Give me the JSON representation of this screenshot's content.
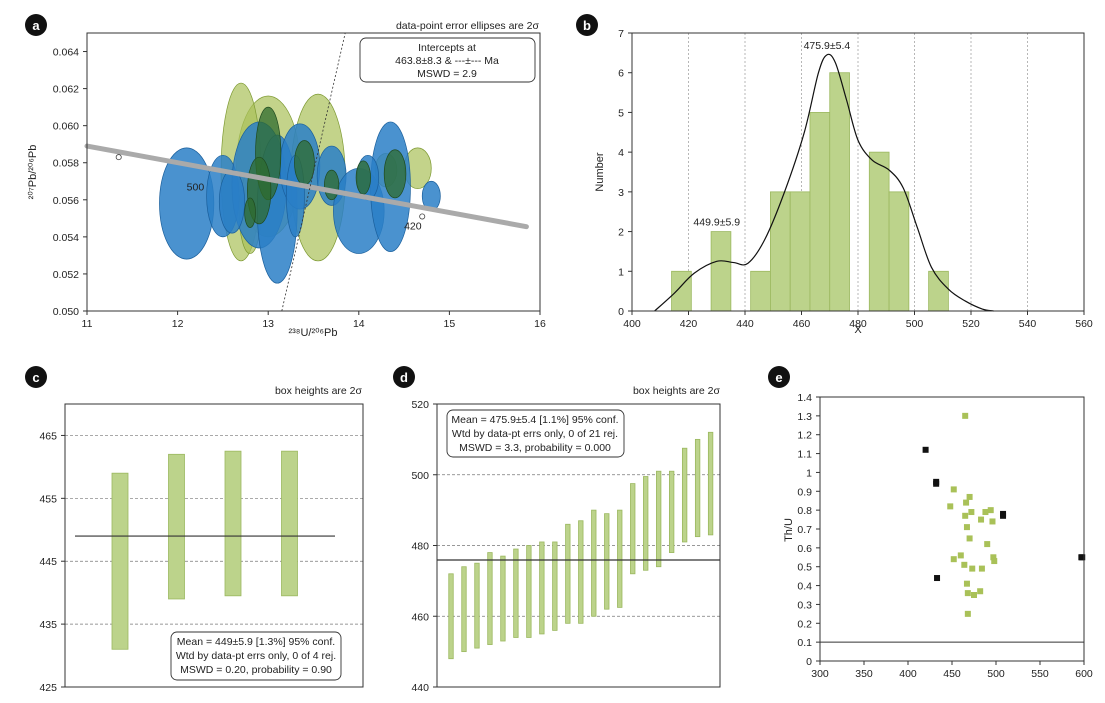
{
  "colors": {
    "blue": "#2a7fc7",
    "blue_dark": "#1a5f9c",
    "dkgreen": "#2f6b2e",
    "ltgreen": "#a9c158",
    "bar_green": "#bcd38b",
    "bar_green_edge": "#9bb85f",
    "black": "#111111",
    "gray": "#aaaaaa"
  },
  "chart_data": [
    {
      "panel": "a",
      "type": "scatter",
      "subtype": "concordia",
      "note": "data-point error ellipses are 2σ",
      "box_lines": [
        "Intercepts at",
        "463.8±8.3 & ---±--- Ma",
        "MSWD = 2.9"
      ],
      "xlabel": "²³⁸U/²⁰⁶Pb",
      "ylabel": "²⁰⁷Pb/²⁰⁶Pb",
      "xlim": [
        11,
        16
      ],
      "ylim": [
        0.05,
        0.065
      ],
      "xticks": [
        11,
        12,
        13,
        14,
        15,
        16
      ],
      "yticks": [
        0.05,
        0.052,
        0.054,
        0.056,
        0.058,
        0.06,
        0.062,
        0.064
      ],
      "ytick_labels": [
        "0.050",
        "0.052",
        "0.054",
        "0.056",
        "0.058",
        "0.060",
        "0.062",
        "0.064"
      ],
      "concordia_points": [
        {
          "x": 11.35,
          "y": 0.0583
        },
        {
          "x": 14.7,
          "y": 0.0551
        }
      ],
      "concordia_labels": [
        {
          "text": "500",
          "x": 12.1,
          "y": 0.0565
        },
        {
          "text": "420",
          "x": 14.5,
          "y": 0.0544
        }
      ],
      "ellipses": [
        {
          "x": 13.0,
          "y": 0.0578,
          "rx": 0.35,
          "ry": 0.0038,
          "c": "ltgreen"
        },
        {
          "x": 13.55,
          "y": 0.0572,
          "rx": 0.3,
          "ry": 0.0045,
          "c": "ltgreen"
        },
        {
          "x": 12.7,
          "y": 0.0575,
          "rx": 0.22,
          "ry": 0.0048,
          "c": "ltgreen"
        },
        {
          "x": 14.65,
          "y": 0.0577,
          "rx": 0.15,
          "ry": 0.0011,
          "c": "ltgreen"
        },
        {
          "x": 14.3,
          "y": 0.0576,
          "rx": 0.12,
          "ry": 0.0009,
          "c": "ltgreen"
        },
        {
          "x": 12.8,
          "y": 0.0553,
          "rx": 0.12,
          "ry": 0.0022,
          "c": "ltgreen"
        },
        {
          "x": 12.1,
          "y": 0.0558,
          "rx": 0.3,
          "ry": 0.003,
          "c": "blue"
        },
        {
          "x": 12.5,
          "y": 0.0562,
          "rx": 0.18,
          "ry": 0.0022,
          "c": "blue"
        },
        {
          "x": 12.9,
          "y": 0.0568,
          "rx": 0.3,
          "ry": 0.0034,
          "c": "blue"
        },
        {
          "x": 13.1,
          "y": 0.0555,
          "rx": 0.22,
          "ry": 0.004,
          "c": "blue"
        },
        {
          "x": 13.35,
          "y": 0.0578,
          "rx": 0.22,
          "ry": 0.0023,
          "c": "blue"
        },
        {
          "x": 13.7,
          "y": 0.0573,
          "rx": 0.16,
          "ry": 0.0016,
          "c": "blue"
        },
        {
          "x": 14.0,
          "y": 0.0554,
          "rx": 0.28,
          "ry": 0.0023,
          "c": "blue"
        },
        {
          "x": 14.35,
          "y": 0.0567,
          "rx": 0.22,
          "ry": 0.0035,
          "c": "blue"
        },
        {
          "x": 14.1,
          "y": 0.0572,
          "rx": 0.12,
          "ry": 0.0012,
          "c": "blue"
        },
        {
          "x": 14.8,
          "y": 0.0562,
          "rx": 0.1,
          "ry": 0.0008,
          "c": "blue"
        },
        {
          "x": 13.3,
          "y": 0.0562,
          "rx": 0.1,
          "ry": 0.0022,
          "c": "blue"
        },
        {
          "x": 12.6,
          "y": 0.0559,
          "rx": 0.14,
          "ry": 0.0017,
          "c": "blue"
        },
        {
          "x": 13.0,
          "y": 0.0585,
          "rx": 0.14,
          "ry": 0.0025,
          "c": "dkgreen"
        },
        {
          "x": 13.4,
          "y": 0.058,
          "rx": 0.11,
          "ry": 0.0012,
          "c": "dkgreen"
        },
        {
          "x": 12.9,
          "y": 0.0565,
          "rx": 0.13,
          "ry": 0.0018,
          "c": "dkgreen"
        },
        {
          "x": 14.4,
          "y": 0.0574,
          "rx": 0.12,
          "ry": 0.0013,
          "c": "dkgreen"
        },
        {
          "x": 14.05,
          "y": 0.0572,
          "rx": 0.08,
          "ry": 0.0009,
          "c": "dkgreen"
        },
        {
          "x": 13.7,
          "y": 0.0568,
          "rx": 0.08,
          "ry": 0.0008,
          "c": "dkgreen"
        },
        {
          "x": 12.8,
          "y": 0.0553,
          "rx": 0.06,
          "ry": 0.0008,
          "c": "dkgreen"
        }
      ]
    },
    {
      "panel": "b",
      "type": "bar",
      "subtype": "histogram_with_density",
      "xlabel": "X",
      "ylabel": "Number",
      "xlim": [
        400,
        560
      ],
      "ylim": [
        0,
        7
      ],
      "xticks": [
        400,
        420,
        440,
        460,
        480,
        500,
        520,
        540,
        560
      ],
      "yticks": [
        0,
        1,
        2,
        3,
        4,
        5,
        6,
        7
      ],
      "bins": [
        {
          "x0": 414,
          "x1": 421,
          "count": 1
        },
        {
          "x0": 428,
          "x1": 435,
          "count": 2
        },
        {
          "x0": 442,
          "x1": 449,
          "count": 1
        },
        {
          "x0": 449,
          "x1": 456,
          "count": 3
        },
        {
          "x0": 456,
          "x1": 463,
          "count": 3
        },
        {
          "x0": 463,
          "x1": 470,
          "count": 5
        },
        {
          "x0": 470,
          "x1": 477,
          "count": 6
        },
        {
          "x0": 484,
          "x1": 491,
          "count": 4
        },
        {
          "x0": 491,
          "x1": 498,
          "count": 3
        },
        {
          "x0": 505,
          "x1": 512,
          "count": 1
        }
      ],
      "density_curve": [
        [
          408,
          0.0
        ],
        [
          415,
          0.45
        ],
        [
          422,
          0.95
        ],
        [
          430,
          1.25
        ],
        [
          436,
          1.22
        ],
        [
          441,
          1.2
        ],
        [
          447,
          1.8
        ],
        [
          454,
          3.0
        ],
        [
          461,
          4.5
        ],
        [
          466,
          6.0
        ],
        [
          469,
          6.45
        ],
        [
          472,
          6.25
        ],
        [
          476,
          5.3
        ],
        [
          480,
          4.3
        ],
        [
          485,
          3.8
        ],
        [
          491,
          3.55
        ],
        [
          496,
          3.1
        ],
        [
          501,
          2.1
        ],
        [
          506,
          1.1
        ],
        [
          512,
          0.55
        ],
        [
          518,
          0.25
        ],
        [
          524,
          0.05
        ],
        [
          528,
          0.0
        ]
      ],
      "peak_labels": [
        {
          "text": "475.9±5.4",
          "x": 469,
          "y": 6.6
        },
        {
          "text": "449.9±5.9",
          "x": 430,
          "y": 2.15
        }
      ]
    },
    {
      "panel": "c",
      "type": "bar",
      "subtype": "weighted_mean",
      "note": "box heights are 2σ",
      "ylim": [
        425,
        470
      ],
      "yticks": [
        425,
        435,
        445,
        455,
        465
      ],
      "gridlines": [
        435,
        445,
        455,
        465
      ],
      "mean": 449,
      "boxes": [
        [
          431,
          459
        ],
        [
          439,
          462
        ],
        [
          439.5,
          462.5
        ],
        [
          439.5,
          462.5
        ]
      ],
      "legend_lines": [
        "Mean = 449±5.9 [1.3%] 95% conf.",
        "Wtd by data-pt errs only, 0 of 4 rej.",
        "MSWD = 0.20, probability = 0.90"
      ]
    },
    {
      "panel": "d",
      "type": "bar",
      "subtype": "weighted_mean",
      "note": "box heights are 2σ",
      "ylim": [
        440,
        520
      ],
      "yticks": [
        440,
        460,
        480,
        500,
        520
      ],
      "gridlines": [
        460,
        480,
        500
      ],
      "mean": 475.9,
      "boxes": [
        [
          448,
          472
        ],
        [
          450,
          474
        ],
        [
          451,
          475
        ],
        [
          452,
          478
        ],
        [
          453,
          477
        ],
        [
          454,
          479
        ],
        [
          454,
          480
        ],
        [
          455,
          481
        ],
        [
          456,
          481
        ],
        [
          458,
          486
        ],
        [
          458,
          487
        ],
        [
          460,
          490
        ],
        [
          462,
          489
        ],
        [
          462.5,
          490
        ],
        [
          472,
          497.5
        ],
        [
          473,
          499.5
        ],
        [
          474,
          501
        ],
        [
          478,
          501
        ],
        [
          481,
          507.5
        ],
        [
          482.5,
          510
        ],
        [
          483,
          512
        ]
      ],
      "legend_lines": [
        "Mean = 475.9±5.4 [1.1%] 95% conf.",
        "Wtd by data-pt errs only, 0 of 21 rej.",
        "MSWD = 3.3, probability = 0.000"
      ]
    },
    {
      "panel": "e",
      "type": "scatter",
      "ylabel": "Th/U",
      "xlim": [
        300,
        600
      ],
      "ylim": [
        0,
        1.4
      ],
      "xticks": [
        300,
        350,
        400,
        450,
        500,
        550,
        600
      ],
      "yticks": [
        0,
        0.1,
        0.2,
        0.3,
        0.4,
        0.5,
        0.6,
        0.7,
        0.8,
        0.9,
        1,
        1.1,
        1.2,
        1.3,
        1.4
      ],
      "hline": 0.1,
      "series": [
        {
          "name": "black",
          "color": "black",
          "points": [
            [
              420,
              1.12
            ],
            [
              432,
              0.95
            ],
            [
              432,
              0.94
            ],
            [
              433,
              0.44
            ],
            [
              508,
              0.78
            ],
            [
              508,
              0.77
            ],
            [
              597,
              0.55
            ],
            [
              598,
              0.55
            ]
          ]
        },
        {
          "name": "green",
          "color": "ltgreen",
          "points": [
            [
              465,
              1.3
            ],
            [
              452,
              0.91
            ],
            [
              470,
              0.87
            ],
            [
              466,
              0.84
            ],
            [
              448,
              0.82
            ],
            [
              472,
              0.79
            ],
            [
              488,
              0.79
            ],
            [
              494,
              0.8
            ],
            [
              465,
              0.77
            ],
            [
              483,
              0.75
            ],
            [
              496,
              0.74
            ],
            [
              467,
              0.71
            ],
            [
              470,
              0.65
            ],
            [
              490,
              0.62
            ],
            [
              460,
              0.56
            ],
            [
              452,
              0.54
            ],
            [
              497,
              0.55
            ],
            [
              498,
              0.53
            ],
            [
              464,
              0.51
            ],
            [
              473,
              0.49
            ],
            [
              484,
              0.49
            ],
            [
              467,
              0.41
            ],
            [
              468,
              0.36
            ],
            [
              475,
              0.35
            ],
            [
              482,
              0.37
            ],
            [
              468,
              0.25
            ]
          ]
        }
      ]
    }
  ]
}
